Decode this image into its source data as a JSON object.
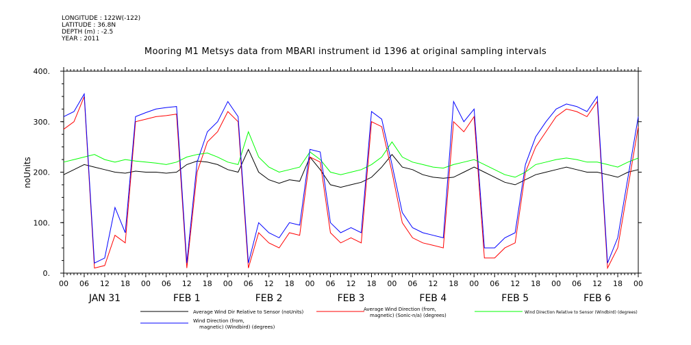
{
  "header": {
    "meta_lines": [
      "LONGITUDE : 122W(-122)",
      "LATITUDE : 36.8N",
      "DEPTH (m) : -2.5",
      "YEAR : 2011"
    ]
  },
  "chart_data": {
    "type": "line",
    "title": "Mooring M1 Metsys data from MBARI instrument id 1396 at original sampling intervals",
    "ylabel": "noUnits",
    "xlabel": "",
    "ylim": [
      0,
      400
    ],
    "yticks": [
      "0.",
      "100.",
      "200.",
      "300.",
      "400."
    ],
    "yticks_values": [
      0,
      100,
      200,
      300,
      400
    ],
    "x_hour_ticks": [
      "00",
      "06",
      "12",
      "18",
      "00",
      "06",
      "12",
      "18",
      "00",
      "06",
      "12",
      "18",
      "00",
      "06",
      "12",
      "18",
      "00",
      "06",
      "12",
      "18",
      "00",
      "06",
      "12",
      "18",
      "00",
      "06",
      "12",
      "18",
      "00"
    ],
    "days": [
      "JAN 31",
      "FEB  1",
      "FEB  2",
      "FEB  3",
      "FEB  4",
      "FEB  5",
      "FEB  6"
    ],
    "x_unit": "hours since 2011-01-31 00:00",
    "xlim": [
      0,
      168
    ],
    "grid": false,
    "legend_position": "bottom",
    "series": [
      {
        "name": "Average Wind Dir Relative to Sensor (noUnits)",
        "color": "#000000",
        "x": [
          0,
          3,
          6,
          9,
          12,
          15,
          18,
          21,
          24,
          27,
          30,
          33,
          36,
          39,
          42,
          45,
          48,
          51,
          54,
          57,
          60,
          63,
          66,
          69,
          72,
          75,
          78,
          81,
          84,
          87,
          90,
          93,
          96,
          99,
          102,
          105,
          108,
          111,
          114,
          117,
          120,
          123,
          126,
          129,
          132,
          135,
          138,
          141,
          144,
          147,
          150,
          153,
          156,
          159,
          162,
          165,
          168
        ],
        "values": [
          195,
          205,
          215,
          210,
          205,
          200,
          198,
          202,
          200,
          200,
          198,
          200,
          215,
          222,
          220,
          215,
          205,
          200,
          245,
          200,
          185,
          178,
          185,
          182,
          230,
          205,
          175,
          170,
          175,
          180,
          190,
          210,
          235,
          210,
          205,
          195,
          190,
          188,
          190,
          200,
          210,
          200,
          190,
          180,
          175,
          185,
          195,
          200,
          205,
          210,
          205,
          200,
          200,
          195,
          190,
          200,
          205
        ]
      },
      {
        "name": "Average Wind Direction (from, magnetic) (Sonic-n/a) (degrees)",
        "color": "#ff0000",
        "x": [
          0,
          3,
          6,
          9,
          12,
          15,
          18,
          21,
          24,
          27,
          30,
          33,
          36,
          39,
          42,
          45,
          48,
          51,
          54,
          57,
          60,
          63,
          66,
          69,
          72,
          75,
          78,
          81,
          84,
          87,
          90,
          93,
          96,
          99,
          102,
          105,
          108,
          111,
          114,
          117,
          120,
          123,
          126,
          129,
          132,
          135,
          138,
          141,
          144,
          147,
          150,
          153,
          156,
          159,
          162,
          165,
          168
        ],
        "values": [
          285,
          300,
          350,
          10,
          15,
          75,
          60,
          300,
          305,
          310,
          312,
          315,
          10,
          200,
          260,
          280,
          320,
          300,
          10,
          80,
          60,
          50,
          80,
          75,
          230,
          220,
          80,
          60,
          70,
          60,
          300,
          290,
          200,
          100,
          70,
          60,
          55,
          50,
          300,
          280,
          310,
          30,
          30,
          50,
          60,
          200,
          250,
          280,
          310,
          325,
          320,
          310,
          340,
          10,
          50,
          170,
          290
        ]
      },
      {
        "name": "Wind Direction Relative to Sensor (Windbird) (degrees)",
        "color": "#00ff00",
        "x": [
          0,
          3,
          6,
          9,
          12,
          15,
          18,
          21,
          24,
          27,
          30,
          33,
          36,
          39,
          42,
          45,
          48,
          51,
          54,
          57,
          60,
          63,
          66,
          69,
          72,
          75,
          78,
          81,
          84,
          87,
          90,
          93,
          96,
          99,
          102,
          105,
          108,
          111,
          114,
          117,
          120,
          123,
          126,
          129,
          132,
          135,
          138,
          141,
          144,
          147,
          150,
          153,
          156,
          159,
          162,
          165,
          168
        ],
        "values": [
          220,
          225,
          230,
          235,
          225,
          220,
          225,
          222,
          220,
          218,
          215,
          220,
          230,
          235,
          238,
          230,
          220,
          215,
          280,
          230,
          210,
          200,
          205,
          210,
          240,
          225,
          200,
          195,
          200,
          205,
          215,
          230,
          260,
          230,
          220,
          215,
          210,
          208,
          215,
          220,
          225,
          215,
          205,
          195,
          190,
          200,
          215,
          220,
          225,
          228,
          225,
          220,
          220,
          215,
          210,
          220,
          228
        ]
      },
      {
        "name": "Wind Direction (from, magnetic) (Windbird) (degrees)",
        "color": "#0000ff",
        "x": [
          0,
          3,
          6,
          9,
          12,
          15,
          18,
          21,
          24,
          27,
          30,
          33,
          36,
          39,
          42,
          45,
          48,
          51,
          54,
          57,
          60,
          63,
          66,
          69,
          72,
          75,
          78,
          81,
          84,
          87,
          90,
          93,
          96,
          99,
          102,
          105,
          108,
          111,
          114,
          117,
          120,
          123,
          126,
          129,
          132,
          135,
          138,
          141,
          144,
          147,
          150,
          153,
          156,
          159,
          162,
          165,
          168
        ],
        "values": [
          310,
          320,
          355,
          20,
          30,
          130,
          80,
          310,
          318,
          325,
          328,
          330,
          20,
          220,
          280,
          300,
          340,
          310,
          20,
          100,
          80,
          70,
          100,
          95,
          245,
          240,
          100,
          80,
          90,
          80,
          320,
          305,
          215,
          120,
          90,
          80,
          75,
          70,
          340,
          300,
          325,
          50,
          50,
          70,
          80,
          215,
          270,
          300,
          325,
          335,
          330,
          320,
          350,
          20,
          70,
          190,
          310
        ]
      }
    ]
  },
  "legend": [
    {
      "line1": "Average Wind Dir Relative to Sensor (noUnits)",
      "line2": "",
      "color": "#000000"
    },
    {
      "line1": "Average Wind Direction (from,",
      "line2": "magnetic) (Sonic-n/a) (degrees)",
      "color": "#ff0000"
    },
    {
      "line1": "Wind Direction Relative to Sensor (Windbird) (degrees)",
      "line2": "",
      "color": "#00ff00"
    },
    {
      "line1": "Wind Direction (from,",
      "line2": "magnetic) (Windbird) (degrees)",
      "color": "#0000ff"
    }
  ]
}
